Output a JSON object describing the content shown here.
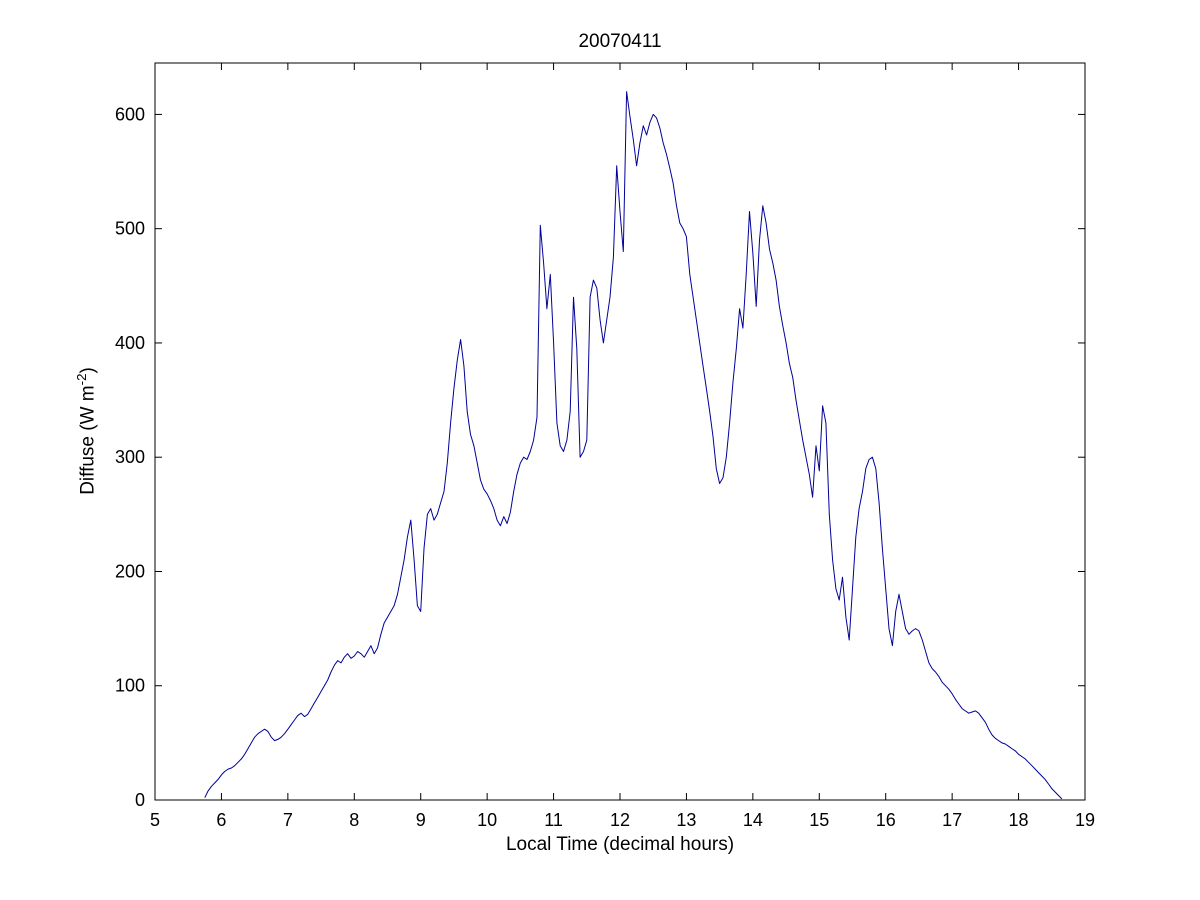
{
  "figure": {
    "title": "20070411",
    "xlabel": "Local Time (decimal hours)",
    "ylabel_prefix": "Diffuse (W m",
    "ylabel_sup": "-2",
    "ylabel_suffix": ")"
  },
  "chart_data": {
    "type": "line",
    "title": "20070411",
    "xlabel": "Local Time (decimal hours)",
    "ylabel": "Diffuse (W m^-2)",
    "xlim": [
      5,
      19
    ],
    "ylim": [
      0,
      645
    ],
    "xticks": [
      5,
      6,
      7,
      8,
      9,
      10,
      11,
      12,
      13,
      14,
      15,
      16,
      17,
      18,
      19
    ],
    "yticks": [
      0,
      100,
      200,
      300,
      400,
      500,
      600
    ],
    "grid": false,
    "legend": false,
    "line_color": "#000099",
    "x_start": 5.75,
    "x_step": 0.05,
    "y": [
      2,
      8,
      12,
      15,
      18,
      22,
      25,
      27,
      28,
      30,
      33,
      36,
      40,
      45,
      50,
      55,
      58,
      60,
      62,
      60,
      55,
      52,
      53,
      55,
      58,
      62,
      66,
      70,
      74,
      76,
      73,
      75,
      80,
      85,
      90,
      95,
      100,
      105,
      112,
      118,
      122,
      120,
      125,
      128,
      124,
      126,
      130,
      128,
      125,
      130,
      135,
      128,
      133,
      145,
      155,
      160,
      165,
      170,
      180,
      195,
      210,
      230,
      245,
      210,
      170,
      165,
      220,
      250,
      255,
      245,
      250,
      260,
      270,
      295,
      330,
      360,
      385,
      403,
      380,
      340,
      320,
      310,
      295,
      280,
      272,
      268,
      262,
      255,
      245,
      240,
      248,
      242,
      252,
      270,
      285,
      295,
      300,
      298,
      305,
      315,
      335,
      503,
      470,
      430,
      460,
      400,
      330,
      310,
      305,
      315,
      340,
      440,
      395,
      300,
      305,
      315,
      440,
      455,
      448,
      420,
      400,
      420,
      440,
      475,
      555,
      515,
      480,
      620,
      598,
      578,
      555,
      575,
      590,
      582,
      593,
      600,
      597,
      588,
      575,
      565,
      553,
      540,
      520,
      505,
      500,
      493,
      460,
      440,
      420,
      400,
      380,
      360,
      340,
      318,
      290,
      277,
      282,
      300,
      330,
      365,
      395,
      430,
      413,
      460,
      515,
      478,
      432,
      490,
      520,
      505,
      482,
      470,
      455,
      432,
      415,
      400,
      382,
      370,
      350,
      332,
      315,
      300,
      285,
      265,
      310,
      288,
      345,
      330,
      250,
      210,
      185,
      175,
      195,
      160,
      140,
      185,
      230,
      255,
      270,
      290,
      298,
      300,
      290,
      260,
      220,
      185,
      150,
      135,
      165,
      180,
      165,
      150,
      145,
      148,
      150,
      148,
      140,
      130,
      120,
      115,
      112,
      108,
      103,
      100,
      97,
      93,
      88,
      84,
      80,
      78,
      76,
      77,
      78,
      76,
      72,
      68,
      62,
      57,
      54,
      52,
      50,
      49,
      47,
      45,
      43,
      40,
      38,
      36,
      33,
      30,
      27,
      24,
      21,
      18,
      14,
      10,
      7,
      4,
      1
    ]
  }
}
